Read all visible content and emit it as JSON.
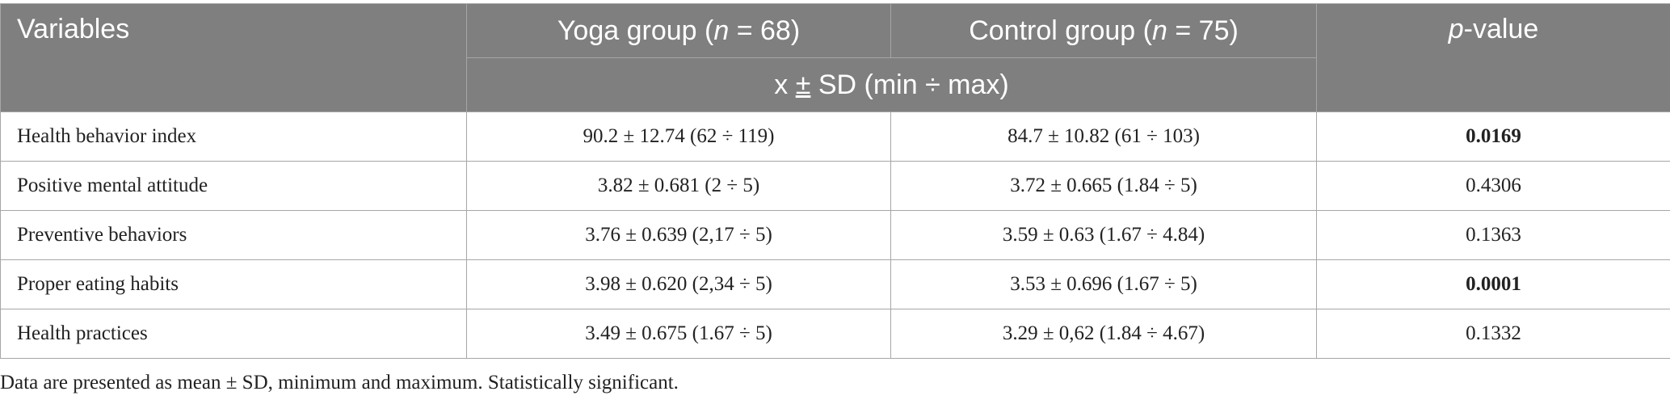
{
  "table": {
    "header": {
      "variables": "Variables",
      "yoga_group": "Yoga group (",
      "yoga_n": "n",
      "yoga_count": " = 68)",
      "control_group": "Control group (",
      "control_n": "n",
      "control_count": " = 75)",
      "p_italic": "p",
      "p_rest": "-value",
      "subheader_x": "x ",
      "subheader_pm": "±",
      "subheader_rest": " SD (min ÷ max)"
    },
    "rows": [
      {
        "variable": "Health behavior index",
        "yoga": "90.2 ± 12.74 (62 ÷ 119)",
        "control": "84.7 ± 10.82 (61 ÷ 103)",
        "p": "0.0169",
        "significant": true
      },
      {
        "variable": "Positive mental attitude",
        "yoga": "3.82 ± 0.681 (2 ÷ 5)",
        "control": "3.72 ± 0.665 (1.84 ÷ 5)",
        "p": "0.4306",
        "significant": false
      },
      {
        "variable": "Preventive behaviors",
        "yoga": "3.76 ± 0.639 (2,17 ÷ 5)",
        "control": "3.59 ± 0.63 (1.67 ÷ 4.84)",
        "p": "0.1363",
        "significant": false
      },
      {
        "variable": "Proper eating habits",
        "yoga": "3.98 ± 0.620 (2,34 ÷ 5)",
        "control": "3.53 ± 0.696 (1.67 ÷ 5)",
        "p": "0.0001",
        "significant": true
      },
      {
        "variable": "Health practices",
        "yoga": "3.49 ± 0.675 (1.67 ÷ 5)",
        "control": "3.29 ± 0,62 (1.84 ÷ 4.67)",
        "p": "0.1332",
        "significant": false
      }
    ]
  },
  "footnote": "Data are presented as mean ± SD, minimum and maximum. Statistically significant.",
  "colors": {
    "header_bg": "#7f7f7f",
    "header_text": "#ffffff",
    "border": "#a6a6a6",
    "body_text": "#222222"
  }
}
